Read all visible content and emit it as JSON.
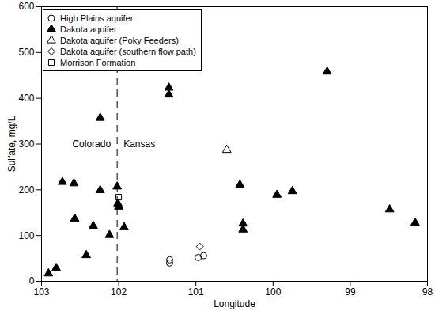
{
  "chart_data": {
    "type": "scatter",
    "x_label": "Longitude",
    "y_label": "Sulfate, mg/L",
    "xlim": [
      103,
      98
    ],
    "xticks": [
      103,
      102,
      101,
      100,
      99,
      98
    ],
    "ylim": [
      0,
      600
    ],
    "yticks": [
      0,
      100,
      200,
      300,
      400,
      500,
      600
    ],
    "grid": false,
    "legend": "top-left",
    "divider": {
      "x": 102.02,
      "labels": [
        "Colorado",
        "Kansas"
      ]
    },
    "series": [
      {
        "name": "High Plains aquifer",
        "marker": "circle-open",
        "color": "#000000",
        "x": [
          101.34,
          101.34,
          100.97,
          100.9
        ],
        "values": [
          47,
          40,
          52,
          56
        ]
      },
      {
        "name": "Dakota aquifer",
        "marker": "triangle-filled",
        "color": "#000000",
        "x": [
          102.91,
          102.81,
          102.73,
          102.58,
          102.57,
          102.42,
          102.33,
          102.24,
          102.24,
          102.12,
          102.02,
          102.01,
          102.0,
          101.93,
          101.35,
          101.35,
          100.43,
          100.39,
          100.39,
          99.95,
          99.75,
          99.3,
          98.49,
          98.16
        ],
        "values": [
          17,
          29,
          217,
          214,
          137,
          57,
          121,
          357,
          199,
          101,
          207,
          170,
          163,
          118,
          423,
          408,
          211,
          126,
          113,
          189,
          197,
          458,
          157,
          128
        ]
      },
      {
        "name": "Dakota aquifer (Poky Feeders)",
        "marker": "triangle-open",
        "color": "#000000",
        "x": [
          100.6
        ],
        "values": [
          287
        ]
      },
      {
        "name": "Dakota aquifer (southern flow path)",
        "marker": "diamond-open",
        "color": "#000000",
        "x": [
          100.95
        ],
        "values": [
          76
        ]
      },
      {
        "name": "Morrison Formation",
        "marker": "square-open",
        "color": "#000000",
        "x": [
          102.0
        ],
        "values": [
          184
        ]
      }
    ]
  }
}
